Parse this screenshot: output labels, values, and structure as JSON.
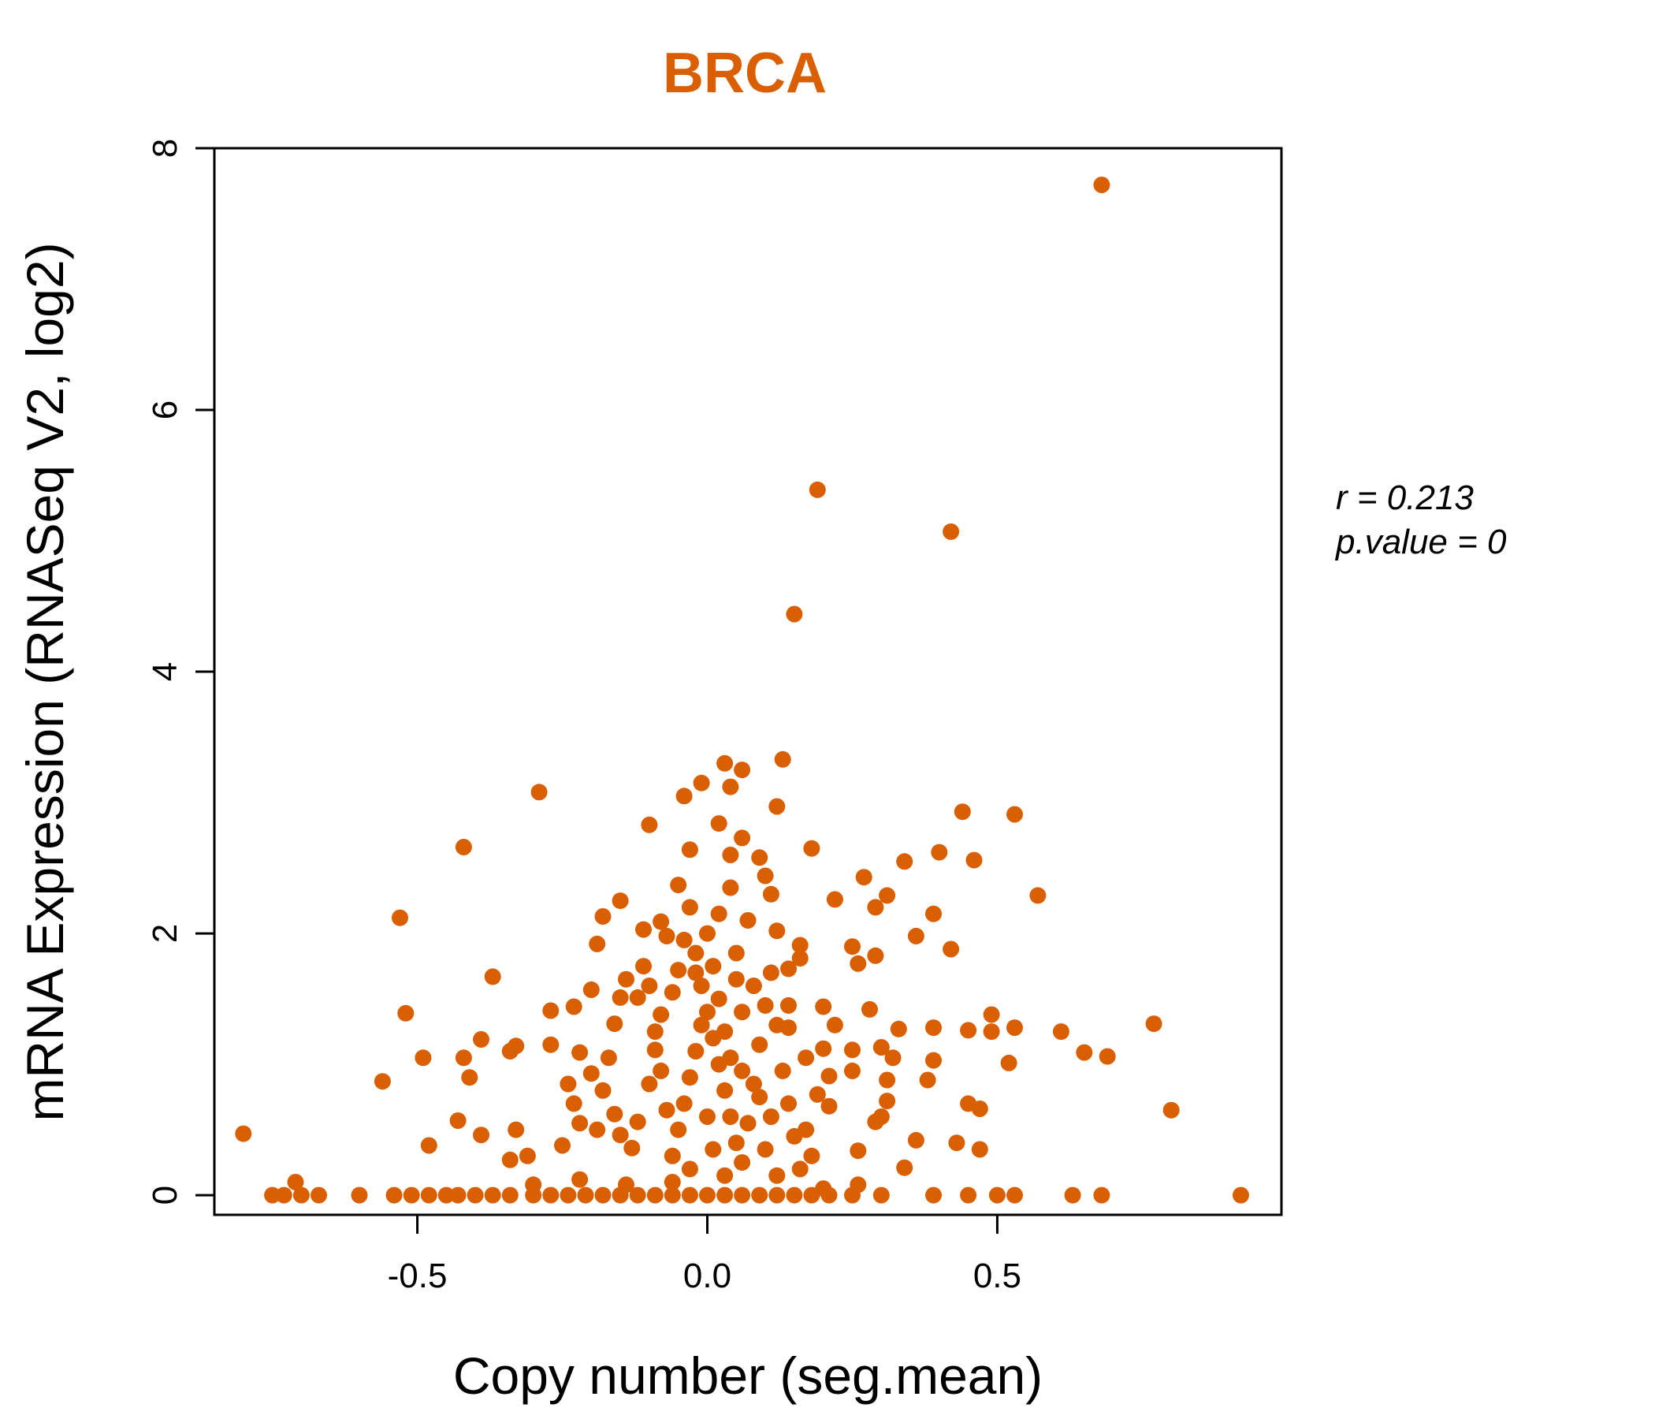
{
  "chart_data": {
    "type": "scatter",
    "title": "BRCA",
    "xlabel": "Copy number (seg.mean)",
    "ylabel": "mRNA Expression (RNASeq V2, log2)",
    "xlim": [
      -0.85,
      0.99
    ],
    "ylim": [
      -0.15,
      8.0
    ],
    "xticks": [
      -0.5,
      0.0,
      0.5
    ],
    "xtick_labels": [
      "-0.5",
      "0.0",
      "0.5"
    ],
    "yticks": [
      0,
      2,
      4,
      6,
      8
    ],
    "ytick_labels": [
      "0",
      "2",
      "4",
      "6",
      "8"
    ],
    "grid": false,
    "legend": "none",
    "color": "#D95F02",
    "annotation": {
      "r_label": "r = 0.213",
      "p_label": "p.value = 0"
    },
    "points": [
      [
        0.68,
        7.72
      ],
      [
        0.19,
        5.39
      ],
      [
        0.42,
        5.07
      ],
      [
        0.15,
        4.44
      ],
      [
        -0.29,
        3.08
      ],
      [
        0.13,
        3.33
      ],
      [
        0.03,
        3.3
      ],
      [
        0.06,
        3.25
      ],
      [
        -0.01,
        3.15
      ],
      [
        0.04,
        3.12
      ],
      [
        0.12,
        2.97
      ],
      [
        -0.04,
        3.05
      ],
      [
        -0.42,
        2.66
      ],
      [
        -0.1,
        2.83
      ],
      [
        0.44,
        2.93
      ],
      [
        0.53,
        2.91
      ],
      [
        0.18,
        2.65
      ],
      [
        0.4,
        2.62
      ],
      [
        0.34,
        2.55
      ],
      [
        0.46,
        2.56
      ],
      [
        -0.53,
        2.12
      ],
      [
        0.57,
        2.29
      ],
      [
        0.31,
        2.29
      ],
      [
        0.22,
        2.26
      ],
      [
        0.27,
        2.43
      ],
      [
        0.29,
        2.2
      ],
      [
        0.39,
        2.15
      ],
      [
        0.36,
        1.98
      ],
      [
        0.42,
        1.88
      ],
      [
        0.25,
        1.9
      ],
      [
        0.26,
        1.77
      ],
      [
        0.29,
        1.83
      ],
      [
        -0.37,
        1.67
      ],
      [
        -0.52,
        1.39
      ],
      [
        -0.49,
        1.05
      ],
      [
        -0.56,
        0.87
      ],
      [
        -0.43,
        0.57
      ],
      [
        -0.48,
        0.38
      ],
      [
        -0.8,
        0.47
      ],
      [
        -0.41,
        0.9
      ],
      [
        -0.42,
        1.05
      ],
      [
        -0.39,
        1.19
      ],
      [
        -0.34,
        1.1
      ],
      [
        -0.33,
        1.14
      ],
      [
        -0.27,
        1.15
      ],
      [
        -0.27,
        1.41
      ],
      [
        -0.23,
        1.44
      ],
      [
        -0.2,
        1.57
      ],
      [
        -0.19,
        1.92
      ],
      [
        -0.18,
        2.13
      ],
      [
        -0.15,
        2.25
      ],
      [
        -0.19,
        0.5
      ],
      [
        -0.33,
        0.5
      ],
      [
        -0.39,
        0.46
      ],
      [
        -0.34,
        0.27
      ],
      [
        -0.31,
        0.3
      ],
      [
        -0.25,
        0.38
      ],
      [
        0.38,
        0.88
      ],
      [
        0.39,
        1.03
      ],
      [
        0.39,
        1.28
      ],
      [
        0.45,
        1.26
      ],
      [
        0.49,
        1.38
      ],
      [
        0.49,
        1.25
      ],
      [
        0.53,
        1.28
      ],
      [
        0.52,
        1.01
      ],
      [
        0.61,
        1.25
      ],
      [
        0.65,
        1.09
      ],
      [
        0.69,
        1.06
      ],
      [
        0.77,
        1.31
      ],
      [
        0.8,
        0.65
      ],
      [
        0.45,
        0.7
      ],
      [
        0.47,
        0.66
      ],
      [
        0.43,
        0.4
      ],
      [
        0.47,
        0.35
      ],
      [
        0.36,
        0.42
      ],
      [
        0.34,
        0.21
      ],
      [
        0.31,
        0.72
      ],
      [
        0.28,
        1.42
      ],
      [
        0.3,
        1.13
      ],
      [
        0.31,
        0.88
      ],
      [
        0.33,
        1.27
      ],
      [
        0.32,
        1.05
      ],
      [
        0.25,
        1.11
      ],
      [
        0.25,
        0.95
      ],
      [
        0.26,
        0.34
      ],
      [
        0.29,
        0.56
      ],
      [
        0.3,
        0.6
      ],
      [
        0.21,
        0.68
      ],
      [
        0.19,
        0.77
      ],
      [
        0.21,
        0.91
      ],
      [
        0.2,
        1.12
      ],
      [
        0.2,
        1.44
      ],
      [
        0.22,
        1.3
      ],
      [
        0.17,
        1.05
      ],
      [
        0.14,
        1.28
      ],
      [
        0.14,
        1.45
      ],
      [
        0.16,
        1.81
      ],
      [
        0.16,
        1.91
      ],
      [
        0.14,
        1.73
      ],
      [
        0.12,
        2.02
      ],
      [
        0.11,
        2.3
      ],
      [
        0.1,
        2.44
      ],
      [
        0.09,
        2.58
      ],
      [
        0.06,
        2.73
      ],
      [
        0.04,
        2.6
      ],
      [
        0.02,
        2.84
      ],
      [
        -0.03,
        2.64
      ],
      [
        -0.05,
        2.37
      ],
      [
        -0.08,
        2.09
      ],
      [
        -0.07,
        1.98
      ],
      [
        -0.11,
        2.03
      ],
      [
        -0.11,
        1.75
      ],
      [
        -0.1,
        1.6
      ],
      [
        -0.12,
        1.51
      ],
      [
        -0.15,
        1.51
      ],
      [
        -0.14,
        1.65
      ],
      [
        -0.16,
        1.31
      ],
      [
        -0.17,
        1.05
      ],
      [
        -0.2,
        0.93
      ],
      [
        -0.22,
        1.09
      ],
      [
        -0.24,
        0.85
      ],
      [
        -0.23,
        0.7
      ],
      [
        -0.22,
        0.55
      ],
      [
        -0.18,
        0.8
      ],
      [
        -0.16,
        0.62
      ],
      [
        -0.15,
        0.46
      ],
      [
        -0.13,
        0.36
      ],
      [
        -0.12,
        0.56
      ],
      [
        -0.1,
        0.85
      ],
      [
        -0.09,
        1.11
      ],
      [
        -0.08,
        1.38
      ],
      [
        -0.06,
        1.55
      ],
      [
        -0.05,
        1.72
      ],
      [
        -0.04,
        1.95
      ],
      [
        -0.03,
        2.2
      ],
      [
        -0.02,
        1.85
      ],
      [
        -0.01,
        1.6
      ],
      [
        0.0,
        1.4
      ],
      [
        0.01,
        1.2
      ],
      [
        0.02,
        1.0
      ],
      [
        0.03,
        0.8
      ],
      [
        0.04,
        0.6
      ],
      [
        0.05,
        0.4
      ],
      [
        0.06,
        0.25
      ],
      [
        0.07,
        0.55
      ],
      [
        0.08,
        0.85
      ],
      [
        0.09,
        1.15
      ],
      [
        0.1,
        1.45
      ],
      [
        0.11,
        1.7
      ],
      [
        0.12,
        1.3
      ],
      [
        0.13,
        0.95
      ],
      [
        0.14,
        0.7
      ],
      [
        0.15,
        0.45
      ],
      [
        0.16,
        0.2
      ],
      [
        0.17,
        0.5
      ],
      [
        0.18,
        0.3
      ],
      [
        0.0,
        2.0
      ],
      [
        0.01,
        1.75
      ],
      [
        0.02,
        1.5
      ],
      [
        0.03,
        1.25
      ],
      [
        0.04,
        1.05
      ],
      [
        0.05,
        1.85
      ],
      [
        -0.01,
        1.3
      ],
      [
        -0.02,
        1.1
      ],
      [
        -0.03,
        0.9
      ],
      [
        -0.04,
        0.7
      ],
      [
        -0.05,
        0.5
      ],
      [
        -0.06,
        0.3
      ],
      [
        -0.07,
        0.65
      ],
      [
        -0.08,
        0.95
      ],
      [
        -0.09,
        1.25
      ],
      [
        0.02,
        2.15
      ],
      [
        0.04,
        2.35
      ],
      [
        0.07,
        2.1
      ],
      [
        0.08,
        1.6
      ],
      [
        0.09,
        0.75
      ],
      [
        0.1,
        0.35
      ],
      [
        0.11,
        0.6
      ],
      [
        0.06,
        1.4
      ],
      [
        0.05,
        1.65
      ],
      [
        -0.02,
        1.7
      ],
      [
        0.0,
        0.6
      ],
      [
        0.01,
        0.35
      ],
      [
        0.03,
        0.15
      ],
      [
        -0.03,
        0.2
      ],
      [
        -0.06,
        0.1
      ],
      [
        0.12,
        0.15
      ],
      [
        0.06,
        0.95
      ],
      [
        -0.75,
        0.0
      ],
      [
        -0.73,
        0.0
      ],
      [
        -0.71,
        0.1
      ],
      [
        -0.7,
        0.0
      ],
      [
        -0.67,
        0.0
      ],
      [
        -0.6,
        0.0
      ],
      [
        -0.54,
        0.0
      ],
      [
        -0.51,
        0.0
      ],
      [
        -0.48,
        0.0
      ],
      [
        -0.45,
        0.0
      ],
      [
        -0.43,
        0.0
      ],
      [
        -0.4,
        0.0
      ],
      [
        -0.37,
        0.0
      ],
      [
        -0.34,
        0.0
      ],
      [
        -0.3,
        0.0
      ],
      [
        -0.27,
        0.0
      ],
      [
        -0.24,
        0.0
      ],
      [
        -0.21,
        0.0
      ],
      [
        -0.18,
        0.0
      ],
      [
        -0.15,
        0.0
      ],
      [
        -0.12,
        0.0
      ],
      [
        -0.09,
        0.0
      ],
      [
        -0.06,
        0.0
      ],
      [
        -0.03,
        0.0
      ],
      [
        0.0,
        0.0
      ],
      [
        0.03,
        0.0
      ],
      [
        0.06,
        0.0
      ],
      [
        0.09,
        0.0
      ],
      [
        0.12,
        0.0
      ],
      [
        0.15,
        0.0
      ],
      [
        0.18,
        0.0
      ],
      [
        0.21,
        0.0
      ],
      [
        0.25,
        0.0
      ],
      [
        0.3,
        0.0
      ],
      [
        0.39,
        0.0
      ],
      [
        0.45,
        0.0
      ],
      [
        0.5,
        0.0
      ],
      [
        0.53,
        0.0
      ],
      [
        0.63,
        0.0
      ],
      [
        0.68,
        0.0
      ],
      [
        0.92,
        0.0
      ],
      [
        -0.3,
        0.08
      ],
      [
        -0.22,
        0.12
      ],
      [
        -0.14,
        0.08
      ],
      [
        0.2,
        0.05
      ],
      [
        0.26,
        0.08
      ]
    ]
  }
}
